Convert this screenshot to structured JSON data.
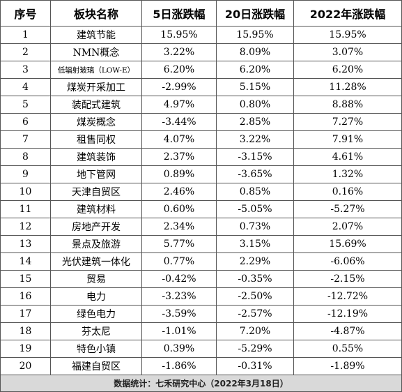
{
  "table": {
    "headers": [
      "序号",
      "板块名称",
      "5日涨跌幅",
      "20日涨跌幅",
      "2022年涨跌幅"
    ],
    "rows": [
      [
        "1",
        "建筑节能",
        "15.95%",
        "15.95%",
        "15.95%"
      ],
      [
        "2",
        "NMN概念",
        "3.22%",
        "8.09%",
        "3.07%"
      ],
      [
        "3",
        "低辐射玻璃（LOW-E）",
        "6.20%",
        "6.20%",
        "6.20%"
      ],
      [
        "4",
        "煤炭开采加工",
        "-2.99%",
        "5.15%",
        "11.28%"
      ],
      [
        "5",
        "装配式建筑",
        "4.97%",
        "0.80%",
        "8.88%"
      ],
      [
        "6",
        "煤炭概念",
        "-3.44%",
        "2.85%",
        "7.27%"
      ],
      [
        "7",
        "租售同权",
        "4.07%",
        "3.22%",
        "7.91%"
      ],
      [
        "8",
        "建筑装饰",
        "2.37%",
        "-3.15%",
        "4.61%"
      ],
      [
        "9",
        "地下管网",
        "0.89%",
        "-3.65%",
        "1.32%"
      ],
      [
        "10",
        "天津自贸区",
        "2.46%",
        "0.85%",
        "0.16%"
      ],
      [
        "11",
        "建筑材料",
        "0.60%",
        "-5.05%",
        "-5.27%"
      ],
      [
        "12",
        "房地产开发",
        "2.34%",
        "0.73%",
        "2.07%"
      ],
      [
        "13",
        "景点及旅游",
        "5.77%",
        "3.15%",
        "15.69%"
      ],
      [
        "14",
        "光伏建筑一体化",
        "0.77%",
        "2.29%",
        "-6.06%"
      ],
      [
        "15",
        "贸易",
        "-0.42%",
        "-0.35%",
        "-2.15%"
      ],
      [
        "16",
        "电力",
        "-3.23%",
        "-2.50%",
        "-12.72%"
      ],
      [
        "17",
        "绿色电力",
        "-3.59%",
        "-2.57%",
        "-12.19%"
      ],
      [
        "18",
        "芬太尼",
        "-1.01%",
        "7.20%",
        "-4.87%"
      ],
      [
        "19",
        "特色小镇",
        "0.39%",
        "-5.29%",
        "0.55%"
      ],
      [
        "20",
        "福建自贸区",
        "-1.86%",
        "-0.31%",
        "-1.89%"
      ]
    ],
    "footer": "数据统计：七禾研究中心（2022年3月18日）"
  },
  "colors": {
    "footer_background": "#d9d9d9",
    "border": "#555555"
  }
}
